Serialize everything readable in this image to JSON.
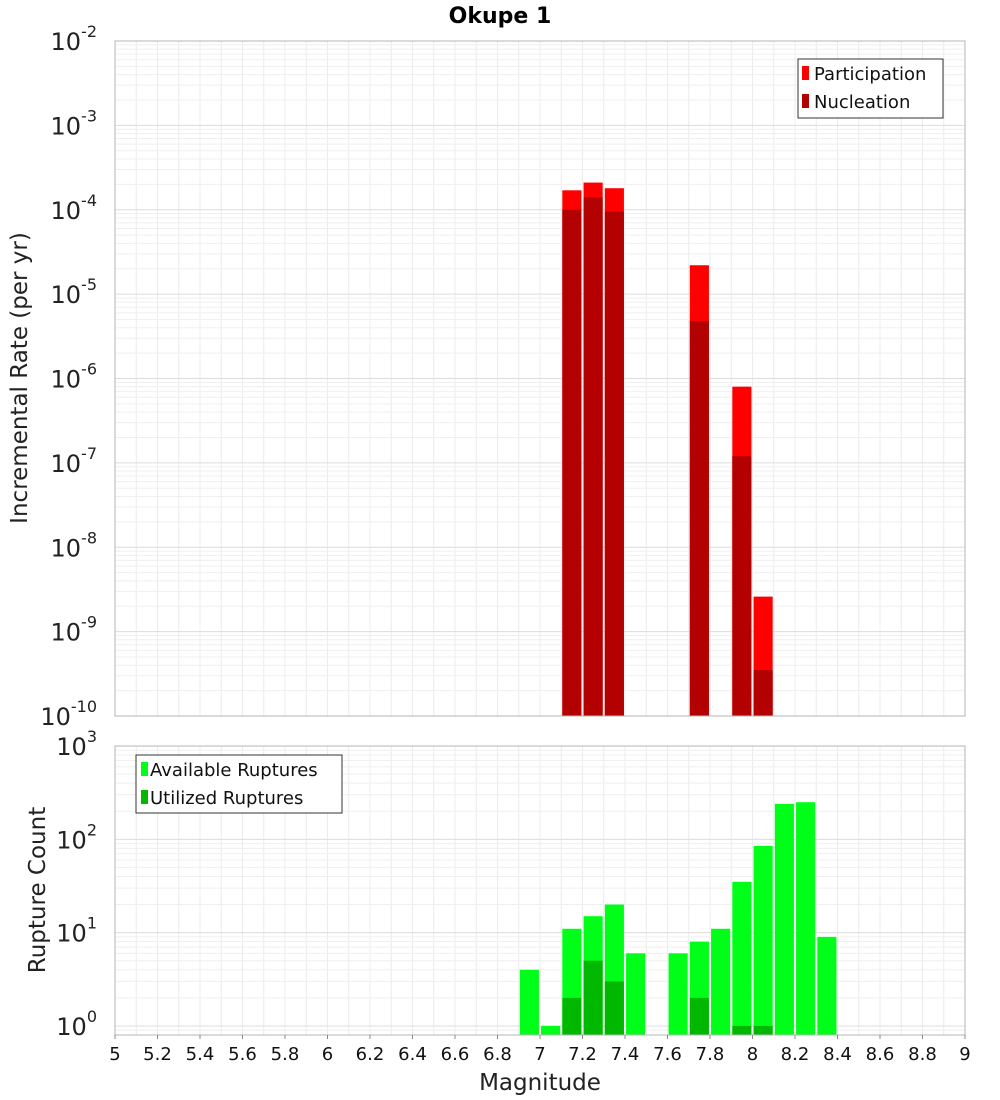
{
  "chart_data": [
    {
      "type": "bar",
      "title": "Okupe 1",
      "xlabel": "",
      "ylabel": "Incremental Rate (per yr)",
      "yscale": "log",
      "ylim": [
        1e-10,
        0.01
      ],
      "xlim": [
        5,
        9
      ],
      "ytick_exponents": [
        "-10",
        "-9",
        "-8",
        "-7",
        "-6",
        "-5",
        "-4",
        "-3",
        "-2"
      ],
      "grid": true,
      "legend_position": "top-right",
      "bar_width": 0.09,
      "x": [
        7.15,
        7.25,
        7.35,
        7.75,
        7.95,
        8.05
      ],
      "series": [
        {
          "name": "Participation",
          "color": "#ff0000",
          "values": [
            0.00017,
            0.00021,
            0.00018,
            2.2e-05,
            8e-07,
            2.6e-09
          ]
        },
        {
          "name": "Nucleation",
          "color": "#b30000",
          "values": [
            0.0001,
            0.00014,
            9.5e-05,
            4.8e-06,
            1.2e-07,
            3.5e-10
          ]
        }
      ]
    },
    {
      "type": "bar",
      "title": "",
      "xlabel": "Magnitude",
      "ylabel": "Rupture Count",
      "yscale": "log",
      "ylim": [
        0.8,
        1000
      ],
      "xlim": [
        5,
        9
      ],
      "ytick_exponents": [
        "0",
        "1",
        "2",
        "3"
      ],
      "xticks": [
        "5",
        "5.2",
        "5.4",
        "5.6",
        "5.8",
        "6",
        "6.2",
        "6.4",
        "6.6",
        "6.8",
        "7",
        "7.2",
        "7.4",
        "7.6",
        "7.8",
        "8",
        "8.2",
        "8.4",
        "8.6",
        "8.8",
        "9"
      ],
      "grid": true,
      "legend_position": "top-left",
      "bar_width": 0.09,
      "series": [
        {
          "name": "Available Ruptures",
          "color": "#00ff18",
          "points": [
            [
              6.95,
              4
            ],
            [
              7.05,
              1
            ],
            [
              7.15,
              11
            ],
            [
              7.25,
              15
            ],
            [
              7.35,
              20
            ],
            [
              7.45,
              6
            ],
            [
              7.65,
              6
            ],
            [
              7.75,
              8
            ],
            [
              7.85,
              11
            ],
            [
              7.95,
              35
            ],
            [
              8.05,
              85
            ],
            [
              8.15,
              240
            ],
            [
              8.25,
              250
            ],
            [
              8.35,
              9
            ]
          ]
        },
        {
          "name": "Utilized Ruptures",
          "color": "#00b800",
          "points": [
            [
              7.15,
              2
            ],
            [
              7.25,
              5
            ],
            [
              7.35,
              3
            ],
            [
              7.75,
              2
            ],
            [
              7.95,
              1
            ],
            [
              8.05,
              1
            ]
          ]
        }
      ]
    }
  ]
}
